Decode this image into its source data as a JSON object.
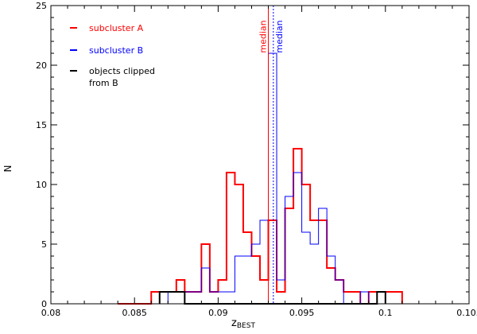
{
  "chart_data": {
    "type": "histogram",
    "xlabel_main": "z",
    "xlabel_sub": "BEST",
    "ylabel": "N",
    "xlim": [
      0.08,
      0.105
    ],
    "ylim": [
      0,
      25
    ],
    "xticks": [
      0.08,
      0.085,
      0.09,
      0.095,
      0.1,
      0.105
    ],
    "xtick_labels": [
      "0.08",
      "0.085",
      "0.09",
      "0.095",
      "0.1",
      "0.105"
    ],
    "yticks": [
      0,
      5,
      10,
      15,
      20,
      25
    ],
    "ytick_labels": [
      "0",
      "5",
      "10",
      "15",
      "20",
      "25"
    ],
    "bin_width": 0.0005,
    "series": [
      {
        "name": "subcluster A",
        "color": "#ff0000",
        "stroke_style": "thick",
        "bins": [
          [
            0.084,
            0
          ],
          [
            0.0845,
            0
          ],
          [
            0.085,
            0
          ],
          [
            0.0855,
            0
          ],
          [
            0.086,
            1
          ],
          [
            0.0865,
            1
          ],
          [
            0.087,
            1
          ],
          [
            0.0875,
            2
          ],
          [
            0.088,
            1
          ],
          [
            0.0885,
            1
          ],
          [
            0.089,
            5
          ],
          [
            0.0895,
            1
          ],
          [
            0.09,
            2
          ],
          [
            0.0905,
            11
          ],
          [
            0.091,
            10
          ],
          [
            0.0915,
            6
          ],
          [
            0.092,
            4
          ],
          [
            0.0925,
            2
          ],
          [
            0.093,
            7
          ],
          [
            0.0935,
            1
          ],
          [
            0.094,
            8
          ],
          [
            0.0945,
            13
          ],
          [
            0.095,
            10
          ],
          [
            0.0955,
            7
          ],
          [
            0.096,
            7
          ],
          [
            0.0965,
            3
          ],
          [
            0.097,
            2
          ],
          [
            0.0975,
            1
          ],
          [
            0.098,
            1
          ],
          [
            0.0985,
            0
          ],
          [
            0.099,
            1
          ],
          [
            0.0995,
            1
          ],
          [
            0.1,
            1
          ],
          [
            0.1005,
            1
          ]
        ]
      },
      {
        "name": "subcluster B",
        "color": "#0000ff",
        "stroke_style": "thin",
        "bins": [
          [
            0.087,
            1
          ],
          [
            0.0875,
            1
          ],
          [
            0.088,
            1
          ],
          [
            0.0885,
            1
          ],
          [
            0.089,
            3
          ],
          [
            0.0895,
            1
          ],
          [
            0.09,
            1
          ],
          [
            0.0905,
            1
          ],
          [
            0.091,
            4
          ],
          [
            0.0915,
            4
          ],
          [
            0.092,
            5
          ],
          [
            0.0925,
            7
          ],
          [
            0.093,
            21
          ],
          [
            0.0935,
            2
          ],
          [
            0.094,
            9
          ],
          [
            0.0945,
            11
          ],
          [
            0.095,
            6
          ],
          [
            0.0955,
            5
          ],
          [
            0.096,
            8
          ],
          [
            0.0965,
            4
          ],
          [
            0.097,
            2
          ],
          [
            0.0975,
            0
          ],
          [
            0.098,
            0
          ],
          [
            0.0985,
            1
          ]
        ]
      },
      {
        "name": "objects clipped from B",
        "color": "#000000",
        "stroke_style": "thick",
        "bins": [
          [
            0.0865,
            1
          ],
          [
            0.087,
            1
          ],
          [
            0.0875,
            1
          ],
          [
            0.088,
            0
          ],
          [
            0.0885,
            0
          ],
          [
            0.089,
            0
          ],
          [
            0.0895,
            0
          ],
          [
            0.09,
            0
          ],
          [
            0.0905,
            0
          ],
          [
            0.091,
            0
          ],
          [
            0.0915,
            0
          ],
          [
            0.092,
            0
          ],
          [
            0.0925,
            0
          ],
          [
            0.093,
            0
          ],
          [
            0.0935,
            0
          ],
          [
            0.094,
            0
          ],
          [
            0.0945,
            0
          ],
          [
            0.095,
            0
          ],
          [
            0.0955,
            0
          ],
          [
            0.096,
            0
          ],
          [
            0.0965,
            0
          ],
          [
            0.097,
            0
          ],
          [
            0.0975,
            0
          ],
          [
            0.098,
            0
          ],
          [
            0.0985,
            0
          ],
          [
            0.099,
            0
          ],
          [
            0.0995,
            1
          ]
        ]
      }
    ],
    "legend": [
      {
        "label": "subcluster A",
        "color": "#ff0000"
      },
      {
        "label": "subcluster B",
        "color": "#0000ff"
      },
      {
        "label": "objects clipped\nfrom B",
        "color": "#000000"
      }
    ],
    "medians": [
      {
        "label": "median",
        "x": 0.093,
        "color": "#ff0000",
        "style": "solid"
      },
      {
        "label": "median",
        "x": 0.0933,
        "color": "#0000ff",
        "style": "dotted"
      }
    ]
  }
}
